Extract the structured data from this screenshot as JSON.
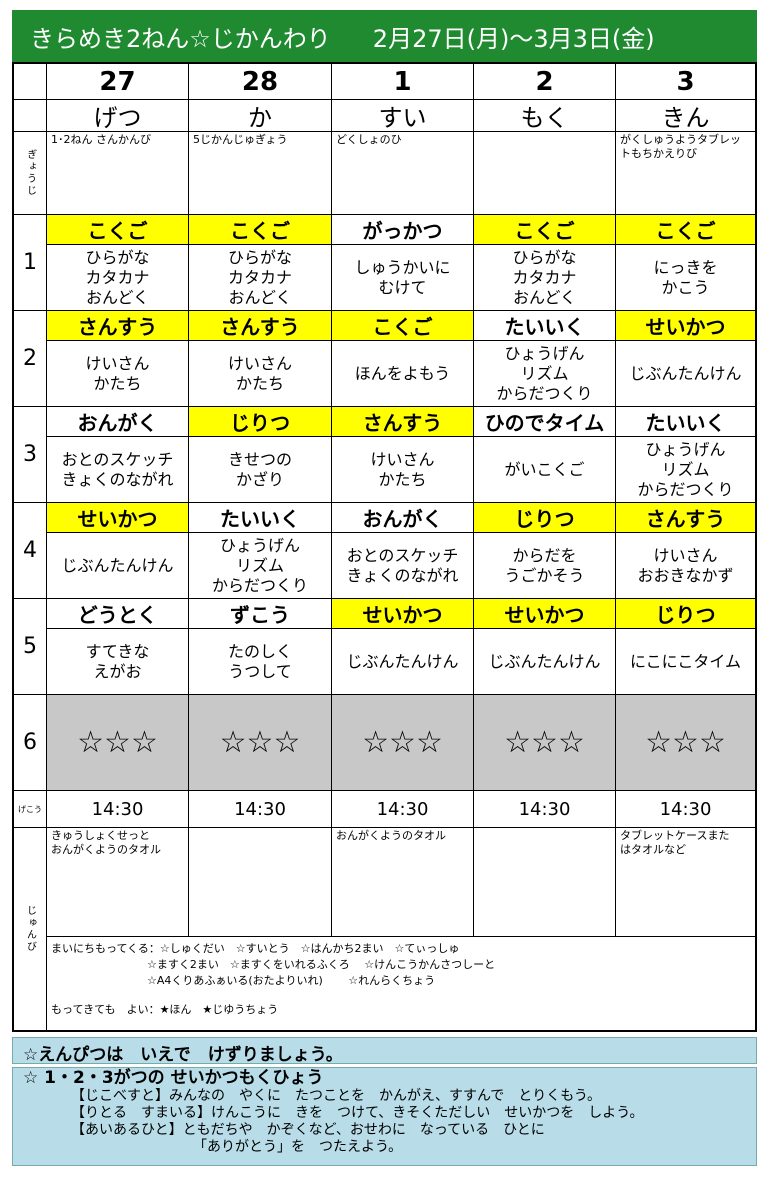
{
  "header": {
    "title": "きらめき2ねん☆じかんわり",
    "dates": "2月27日(月)～3月3日(金)"
  },
  "table": {
    "dates": [
      "27",
      "28",
      "1",
      "2",
      "3"
    ],
    "days": [
      "げつ",
      "か",
      "すい",
      "もく",
      "きん"
    ],
    "events_label": "ぎょうじ",
    "events": [
      "1･2ねん さんかんび",
      "5じかんじゅぎょう",
      "どくしょのひ",
      null,
      "がくしゅうようタブレットもちかえりび"
    ],
    "periods": [
      {
        "label": "1",
        "classes": [
          {
            "subject": "こくご",
            "highlight": true,
            "content": [
              "ひらがな",
              "カタカナ",
              "おんどく"
            ]
          },
          {
            "subject": "こくご",
            "highlight": true,
            "content": [
              "ひらがな",
              "カタカナ",
              "おんどく"
            ]
          },
          {
            "subject": "がっかつ",
            "highlight": false,
            "content": [
              "しゅうかいに",
              "むけて"
            ]
          },
          {
            "subject": "こくご",
            "highlight": true,
            "content": [
              "ひらがな",
              "カタカナ",
              "おんどく"
            ]
          },
          {
            "subject": "こくご",
            "highlight": true,
            "content": [
              "にっきを",
              "かこう"
            ]
          }
        ]
      },
      {
        "label": "2",
        "classes": [
          {
            "subject": "さんすう",
            "highlight": true,
            "content": [
              "けいさん",
              "かたち"
            ]
          },
          {
            "subject": "さんすう",
            "highlight": true,
            "content": [
              "けいさん",
              "かたち"
            ]
          },
          {
            "subject": "こくご",
            "highlight": true,
            "content": [
              "ほんをよもう"
            ]
          },
          {
            "subject": "たいいく",
            "highlight": false,
            "content": [
              "ひょうげん",
              "リズム",
              "からだつくり"
            ]
          },
          {
            "subject": "せいかつ",
            "highlight": true,
            "content": [
              "じぶんたんけん"
            ]
          }
        ]
      },
      {
        "label": "3",
        "classes": [
          {
            "subject": "おんがく",
            "highlight": false,
            "content": [
              "おとのスケッチ",
              "きょくのながれ"
            ]
          },
          {
            "subject": "じりつ",
            "highlight": true,
            "content": [
              "きせつの",
              "かざり"
            ]
          },
          {
            "subject": "さんすう",
            "highlight": true,
            "content": [
              "けいさん",
              "かたち"
            ]
          },
          {
            "subject": "ひのでタイム",
            "highlight": false,
            "content": [
              "がいこくご"
            ]
          },
          {
            "subject": "たいいく",
            "highlight": false,
            "content": [
              "ひょうげん",
              "リズム",
              "からだつくり"
            ]
          }
        ]
      },
      {
        "label": "4",
        "classes": [
          {
            "subject": "せいかつ",
            "highlight": true,
            "content": [
              "じぶんたんけん"
            ]
          },
          {
            "subject": "たいいく",
            "highlight": false,
            "content": [
              "ひょうげん",
              "リズム",
              "からだつくり"
            ]
          },
          {
            "subject": "おんがく",
            "highlight": false,
            "content": [
              "おとのスケッチ",
              "きょくのながれ"
            ]
          },
          {
            "subject": "じりつ",
            "highlight": true,
            "content": [
              "からだを",
              "うごかそう"
            ]
          },
          {
            "subject": "さんすう",
            "highlight": true,
            "content": [
              "けいさん",
              "おおきなかず"
            ]
          }
        ]
      },
      {
        "label": "5",
        "classes": [
          {
            "subject": "どうとく",
            "highlight": false,
            "content": [
              "すてきな",
              "えがお"
            ]
          },
          {
            "subject": "ずこう",
            "highlight": false,
            "content": [
              "たのしく",
              "うつして"
            ]
          },
          {
            "subject": "せいかつ",
            "highlight": true,
            "content": [
              "じぶんたんけん"
            ]
          },
          {
            "subject": "せいかつ",
            "highlight": true,
            "content": [
              "じぶんたんけん"
            ]
          },
          {
            "subject": "じりつ",
            "highlight": true,
            "content": [
              "にこにこタイム"
            ]
          }
        ]
      }
    ],
    "period6": {
      "label": "6",
      "cells": [
        "☆☆☆",
        "☆☆☆",
        "☆☆☆",
        "☆☆☆",
        "☆☆☆"
      ]
    },
    "dismissal_label": "げこう",
    "dismissal": [
      "14:30",
      "14:30",
      "14:30",
      "14:30",
      "14:30"
    ],
    "prep_label": "じゅんび",
    "prep": [
      [
        "きゅうしょくせっと",
        "おんがくようのタオル"
      ],
      null,
      [
        "おんがくようのタオル"
      ],
      null,
      [
        "タブレットケースまた",
        "はタオルなど"
      ]
    ],
    "daily_label": "まいにちもってくる：",
    "daily_lines": [
      "☆しゅくだい　☆すいとう　☆はんかち2まい　☆てぃっしゅ",
      "☆ますく2まい　☆ますくをいれるふくろ　 ☆けんこうかんさつしーと",
      "☆A4くりあふぁいる(おたよりいれ)　　 ☆れんらくちょう"
    ],
    "optional": "もってきても　よい：★ほん　★じゆうちょう"
  },
  "notes": {
    "pencil": "☆えんぴつは　いえで　けずりましょう。",
    "goals_title": "☆ 1・2・3がつの せいかつもくひょう",
    "goals": [
      [
        "【じこべすと】みんなの　やくに　たつことを　かんがえ、すすんで　とりくもう。"
      ],
      [
        "【りとる　すまいる】けんこうに　きを　つけて、きそくただしい　せいかつを　しよう。"
      ],
      [
        "【あいあるひと】ともだちや　かぞくなど、おせわに　なっている　ひとに",
        "「ありがとう」を　つたえよう。"
      ]
    ]
  }
}
